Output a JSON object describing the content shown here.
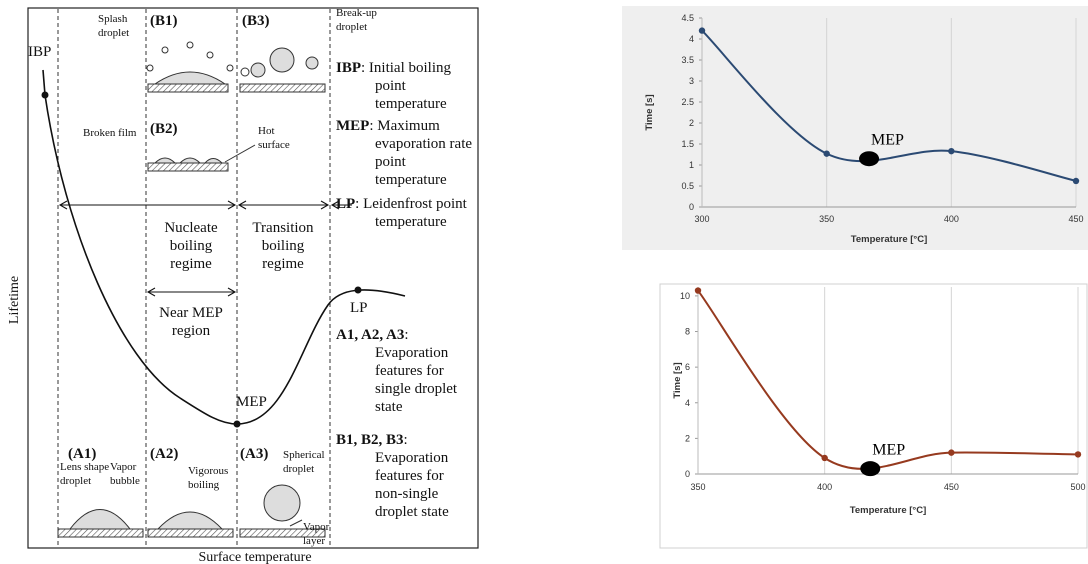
{
  "diagram": {
    "x_label": "Surface temperature",
    "y_label": "Lifetime",
    "points": {
      "ibp": "IBP",
      "mep": "MEP",
      "lp": "LP"
    },
    "regimes": {
      "nucleate": [
        "Nucleate",
        "boiling",
        "regime"
      ],
      "transition": [
        "Transition",
        "boiling",
        "regime"
      ],
      "near_mep": [
        "Near MEP",
        "region"
      ]
    },
    "panels": {
      "b1": "(B1)",
      "b2": "(B2)",
      "b3": "(B3)",
      "a1": "(A1)",
      "a2": "(A2)",
      "a3": "(A3)"
    },
    "callouts": {
      "splash": [
        "Splash",
        "droplet"
      ],
      "breakup": [
        "Break-up",
        "droplet"
      ],
      "broken_film": [
        "Broken film"
      ],
      "hot_surface": [
        "Hot",
        "surface"
      ],
      "lens": [
        "Lens shape",
        "droplet"
      ],
      "vapor_bubble": [
        "Vapor",
        "bubble"
      ],
      "vigorous": [
        "Vigorous",
        "boiling"
      ],
      "spherical": [
        "Spherical",
        "droplet"
      ],
      "vapor_layer": [
        "Vapor",
        "layer"
      ]
    },
    "legend": [
      {
        "term": "IBP",
        "def": [
          ": Initial boiling",
          "point",
          "temperature"
        ]
      },
      {
        "term": "MEP",
        "def": [
          ": Maximum",
          "evaporation rate",
          "point",
          "temperature"
        ]
      },
      {
        "term": "LP",
        "def": [
          ": Leidenfrost point",
          "temperature"
        ]
      },
      {
        "term": "A1, A2, A3",
        "def": [
          ":",
          "Evaporation",
          "features for",
          "single droplet",
          "state"
        ]
      },
      {
        "term": "B1, B2, B3",
        "def": [
          ":",
          "Evaporation",
          "features for",
          "non-single",
          "droplet state"
        ]
      }
    ]
  },
  "chart_data": [
    {
      "type": "line",
      "x_label": "Temperature [°C]",
      "y_label": "Time [s]",
      "x": [
        300,
        350,
        400,
        450
      ],
      "series": [
        {
          "color": "#2b4a73",
          "values": [
            4.2,
            1.27,
            1.33,
            0.62
          ]
        }
      ],
      "xlim": [
        300,
        450
      ],
      "xticks": [
        300,
        350,
        400,
        450
      ],
      "ylim": [
        0,
        4.5
      ],
      "yticks": [
        0,
        0.5,
        1,
        1.5,
        2,
        2.5,
        3,
        3.5,
        4,
        4.5
      ],
      "grid": "x",
      "annotation": {
        "text": "MEP",
        "x": 367,
        "y": 1.15
      }
    },
    {
      "type": "line",
      "x_label": "Temperature [°C]",
      "y_label": "Time [s]",
      "x": [
        350,
        400,
        450,
        500
      ],
      "series": [
        {
          "color": "#963a1f",
          "values": [
            10.3,
            0.9,
            1.2,
            1.1
          ]
        }
      ],
      "xlim": [
        350,
        500
      ],
      "xticks": [
        350,
        400,
        450,
        500
      ],
      "ylim": [
        0,
        10.5
      ],
      "yticks": [
        0,
        2,
        4,
        6,
        8,
        10
      ],
      "grid": "x",
      "annotation": {
        "text": "MEP",
        "x": 418,
        "y": 0.3
      }
    }
  ]
}
